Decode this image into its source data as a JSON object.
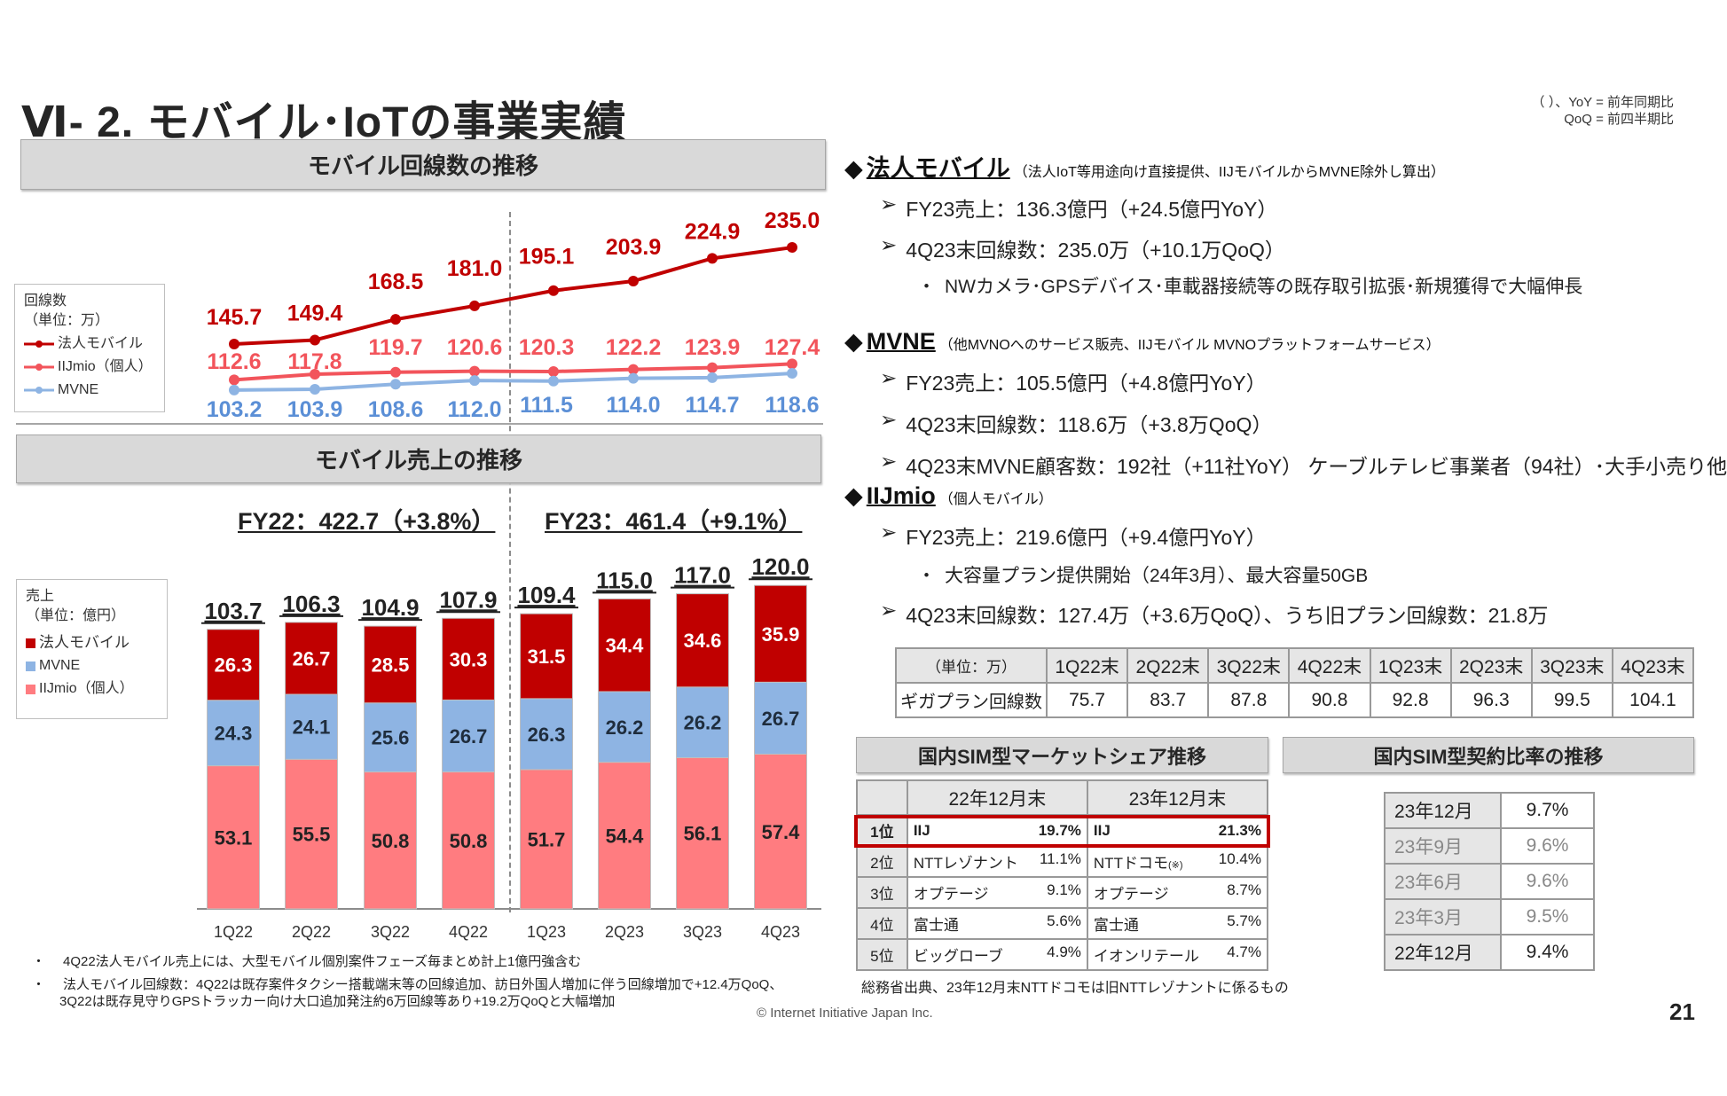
{
  "header": {
    "title": "Ⅵ- 2.  モバイル･IoTの事業実績",
    "note_line1": "（ ）、YoY = 前年同期比",
    "note_line2": "QoQ = 前四半期比"
  },
  "colors": {
    "hojin": "#c00000",
    "iijmio_line": "#f2545b",
    "iijmio_bar": "#ff7c80",
    "mvne": "#8eb4e3",
    "mvne_label": "#5b8fd6",
    "banner": "#d9d9d9",
    "highlight_box": "#c00000"
  },
  "line_banner": "モバイル回線数の推移",
  "bar_banner": "モバイル売上の推移",
  "line_legend": {
    "title": "回線数",
    "unit": "（単位：万）",
    "items": [
      "法人モバイル",
      "IIJmio（個人）",
      "MVNE"
    ]
  },
  "bar_legend": {
    "title": "売上",
    "unit": "（単位：億円）",
    "items": [
      "法人モバイル",
      "MVNE",
      "IIJmio（個人）"
    ]
  },
  "fy_labels": [
    "FY22：422.7（+3.8%）",
    "FY23：461.4（+9.1%）"
  ],
  "chart_data": [
    {
      "type": "line",
      "categories": [
        "1Q22",
        "2Q22",
        "3Q22",
        "4Q22",
        "1Q23",
        "2Q23",
        "3Q23",
        "4Q23"
      ],
      "series": [
        {
          "name": "法人モバイル",
          "values": [
            145.7,
            149.4,
            168.5,
            181.0,
            195.1,
            203.9,
            224.9,
            235.0
          ]
        },
        {
          "name": "IIJmio（個人）",
          "values": [
            112.6,
            117.8,
            119.7,
            120.6,
            120.3,
            122.2,
            123.9,
            127.4
          ]
        },
        {
          "name": "MVNE",
          "values": [
            103.2,
            103.9,
            108.6,
            112.0,
            111.5,
            114.0,
            114.7,
            118.6
          ]
        }
      ],
      "ylabel": "回線数（単位：万）",
      "data_labels": true,
      "grid": false,
      "legend": "left"
    },
    {
      "type": "bar",
      "stacked": true,
      "categories": [
        "1Q22",
        "2Q22",
        "3Q22",
        "4Q22",
        "1Q23",
        "2Q23",
        "3Q23",
        "4Q23"
      ],
      "series": [
        {
          "name": "IIJmio（個人）",
          "values": [
            53.1,
            55.5,
            50.8,
            50.8,
            51.7,
            54.4,
            56.1,
            57.4
          ]
        },
        {
          "name": "MVNE",
          "values": [
            24.3,
            24.1,
            25.6,
            26.7,
            26.3,
            26.2,
            26.2,
            26.7
          ]
        },
        {
          "name": "法人モバイル",
          "values": [
            26.3,
            26.7,
            28.5,
            30.3,
            31.5,
            34.4,
            34.6,
            35.9
          ]
        }
      ],
      "totals": [
        "103.7",
        "106.3",
        "104.9",
        "107.9",
        "109.4",
        "115.0",
        "117.0",
        "120.0"
      ],
      "ylabel": "売上（単位：億円）",
      "grid": false,
      "legend": "left"
    }
  ],
  "footnotes": [
    "4Q22法人モバイル売上には、大型モバイル個別案件フェーズ毎まとめ計上1億円強含む",
    "法人モバイル回線数：4Q22は既存案件タクシー搭載端末等の回線追加、訪日外国人増加に伴う回線増加で+12.4万QoQ、",
    "3Q22は既存見守りGPSトラッカー向け大口追加発注約6万回線等あり+19.2万QoQと大幅増加"
  ],
  "copyright": "© Internet Initiative Japan Inc.",
  "page_number": "21",
  "sections": [
    {
      "title": "法人モバイル",
      "subtitle": "（法人IoT等用途向け直接提供、IIJモバイルからMVNE除外し算出）",
      "bullets": [
        "FY23売上：136.3億円（+24.5億円YoY）",
        "4Q23末回線数：235.0万（+10.1万QoQ）",
        "NWカメラ･GPSデバイス･車載器接続等の既存取引拡張･新規獲得で大幅伸長"
      ]
    },
    {
      "title": "MVNE",
      "subtitle": "（他MVNOへのサービス販売、IIJモバイル MVNOプラットフォームサービス）",
      "bullets": [
        "FY23売上：105.5億円（+4.8億円YoY）",
        "4Q23末回線数：118.6万（+3.8万QoQ）",
        "4Q23末MVNE顧客数：192社（+11社YoY） ケーブルテレビ事業者（94社）･大手小売り他"
      ]
    },
    {
      "title": "IIJmio",
      "subtitle": "（個人モバイル）",
      "bullets": [
        "FY23売上：219.6億円（+9.4億円YoY）",
        "大容量プラン提供開始（24年3月）、最大容量50GB",
        "4Q23末回線数：127.4万（+3.6万QoQ）、うち旧プラン回線数：21.8万"
      ]
    }
  ],
  "giga_table": {
    "unit": "（単位：万）",
    "headers": [
      "1Q22末",
      "2Q22末",
      "3Q22末",
      "4Q22末",
      "1Q23末",
      "2Q23末",
      "3Q23末",
      "4Q23末"
    ],
    "row_label": "ギガプラン回線数",
    "values": [
      "75.7",
      "83.7",
      "87.8",
      "90.8",
      "92.8",
      "96.3",
      "99.5",
      "104.1"
    ]
  },
  "market_share": {
    "title": "国内SIM型マーケットシェア推移",
    "headers": [
      "22年12月末",
      "23年12月末"
    ],
    "rows": [
      {
        "rank": "1位",
        "a_name": "IIJ",
        "a_val": "19.7%",
        "b_name": "IIJ",
        "b_val": "21.3%"
      },
      {
        "rank": "2位",
        "a_name": "NTTレゾナント",
        "a_val": "11.1%",
        "b_name": "NTTドコモ",
        "b_note": "(※)",
        "b_val": "10.4%"
      },
      {
        "rank": "3位",
        "a_name": "オプテージ",
        "a_val": "9.1%",
        "b_name": "オプテージ",
        "b_val": "8.7%"
      },
      {
        "rank": "4位",
        "a_name": "富士通",
        "a_val": "5.6%",
        "b_name": "富士通",
        "b_val": "5.7%"
      },
      {
        "rank": "5位",
        "a_name": "ビッグローブ",
        "a_val": "4.9%",
        "b_name": "イオンリテール",
        "b_val": "4.7%"
      }
    ],
    "source": "総務省出典、23年12月末NTTドコモは旧NTTレゾナントに係るもの"
  },
  "contract_ratio": {
    "title": "国内SIM型契約比率の推移",
    "rows": [
      {
        "period": "23年12月",
        "value": "9.7%"
      },
      {
        "period": "23年9月",
        "value": "9.6%"
      },
      {
        "period": "23年6月",
        "value": "9.6%"
      },
      {
        "period": "23年3月",
        "value": "9.5%"
      },
      {
        "period": "22年12月",
        "value": "9.4%"
      }
    ]
  }
}
